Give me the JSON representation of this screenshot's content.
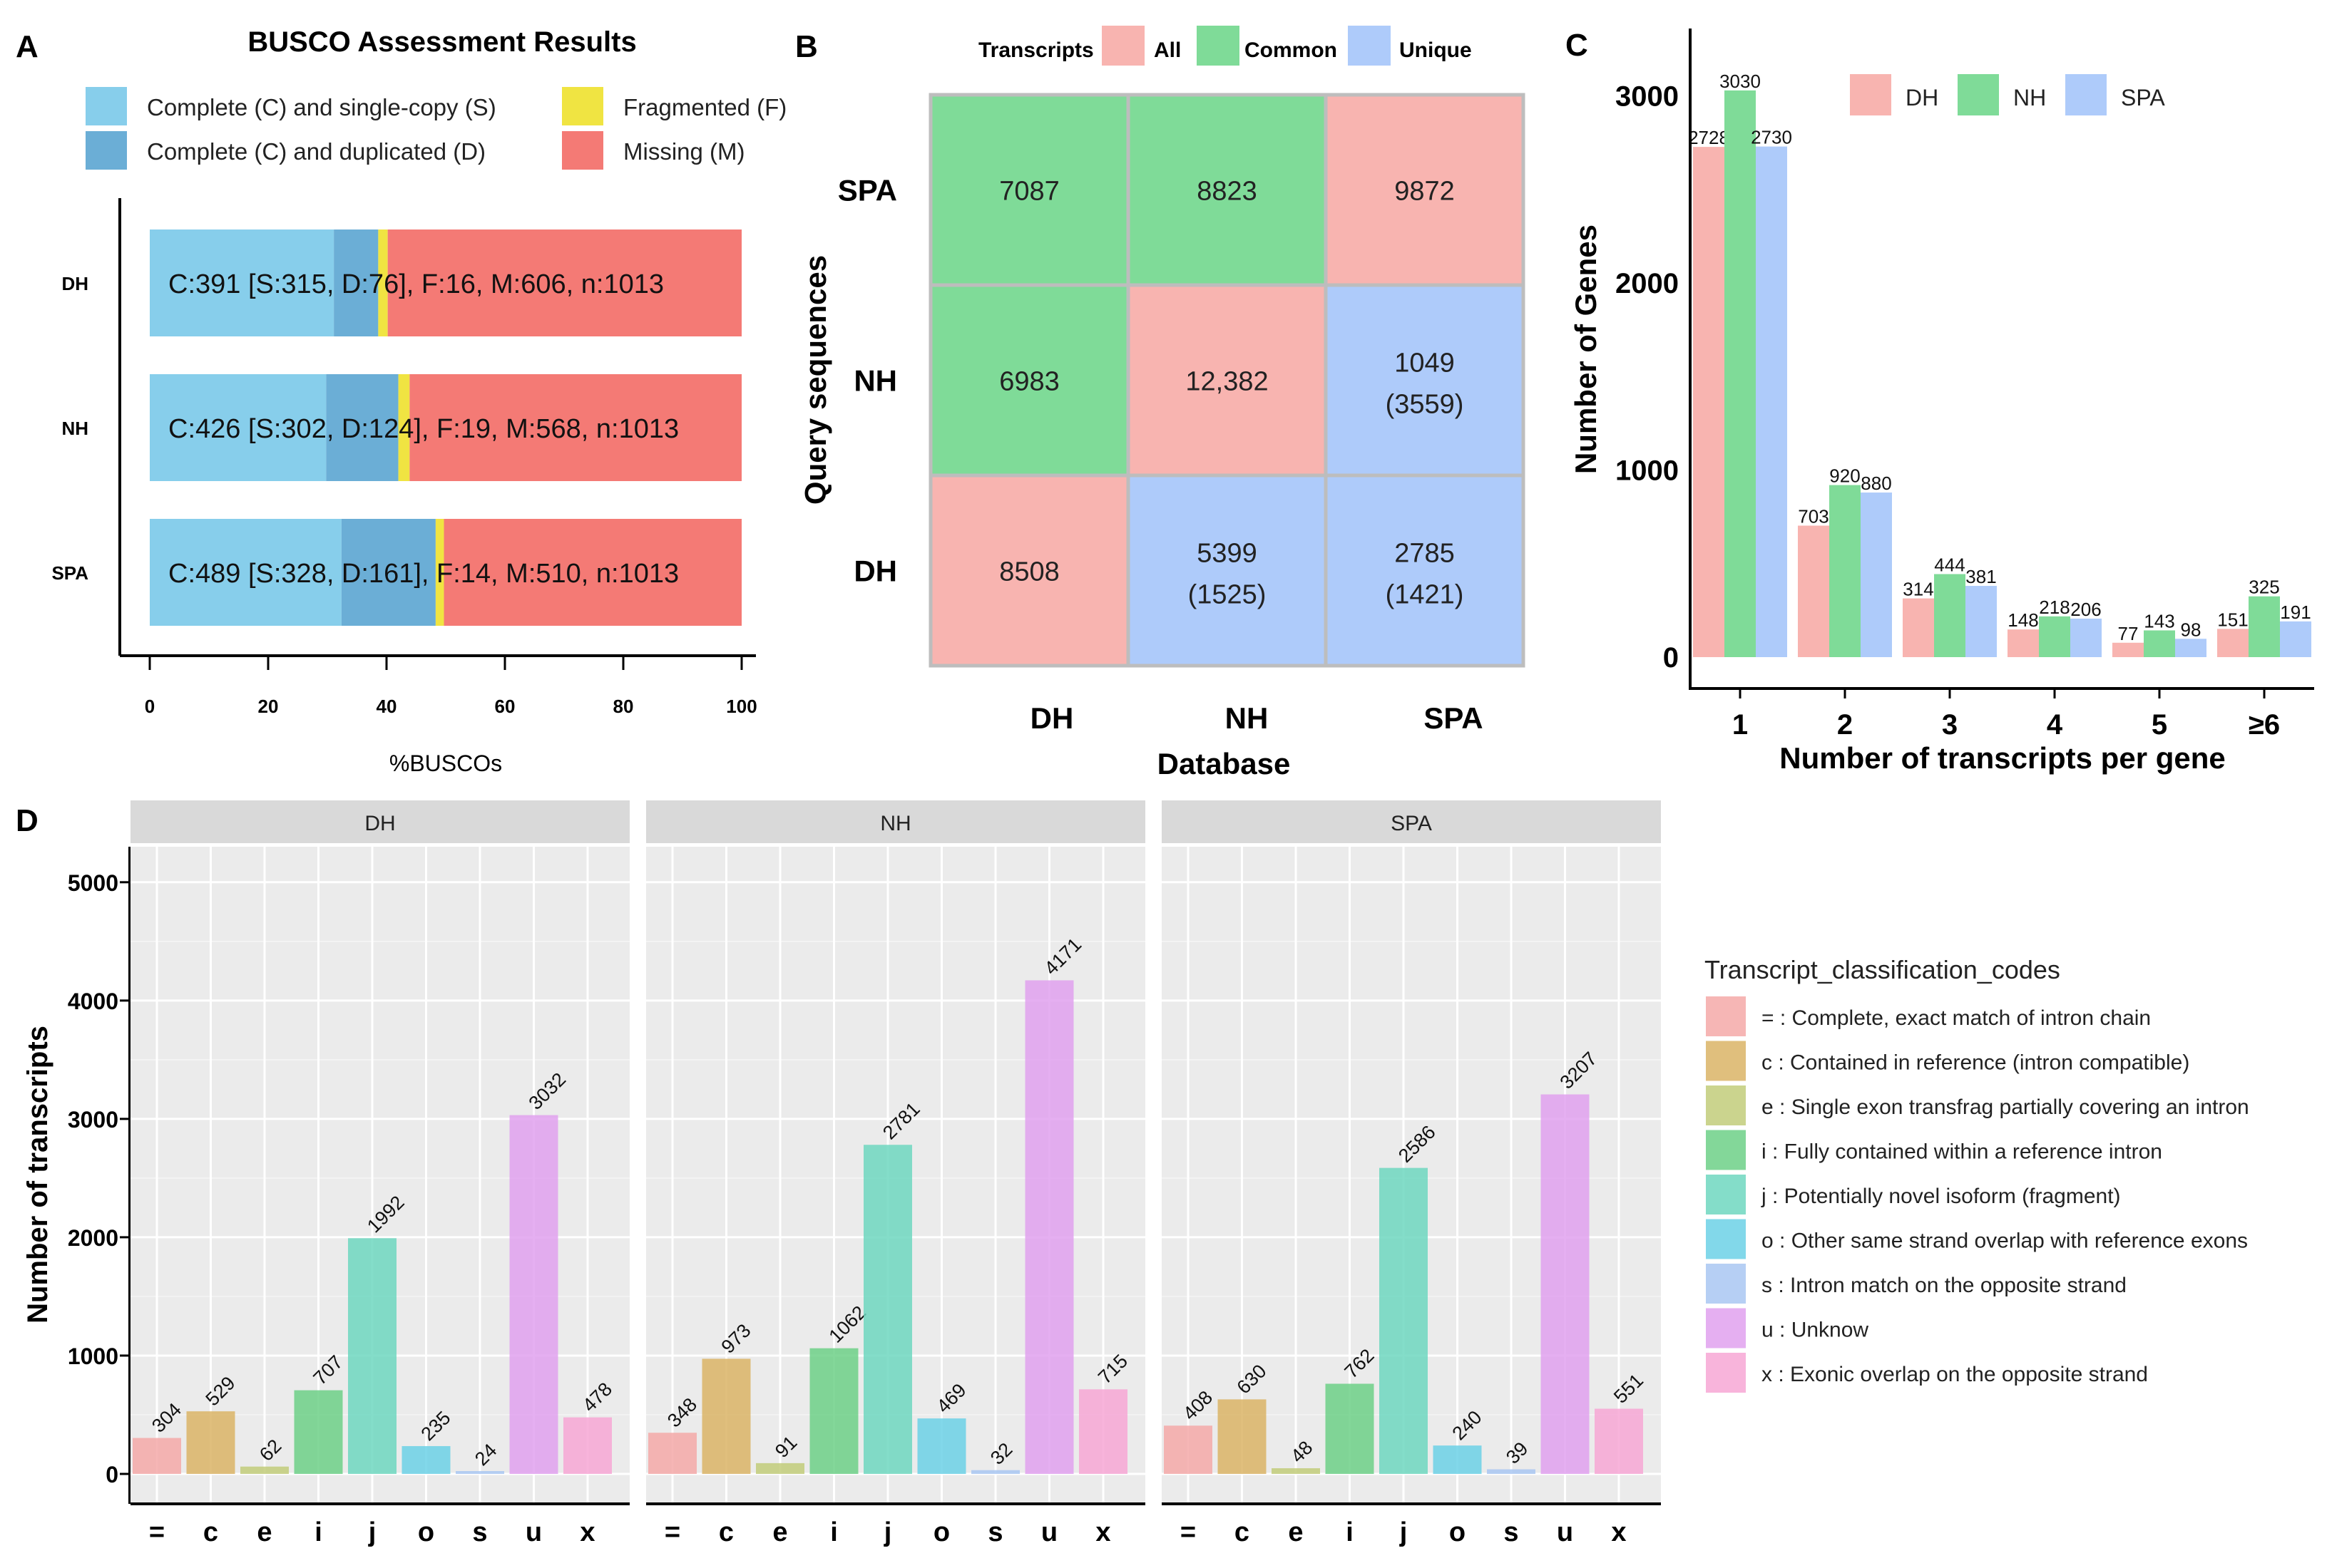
{
  "chart_data": [
    {
      "panel": "A",
      "type": "bar",
      "orientation": "horizontal-stacked",
      "title": "BUSCO Assessment Results",
      "xlabel": "%BUSCOs",
      "ylabel": "",
      "xlim": [
        0,
        100
      ],
      "xticks": [
        "0",
        "20",
        "40",
        "60",
        "80",
        "100"
      ],
      "categories": [
        "DH",
        "NH",
        "SPA"
      ],
      "series": [
        {
          "name": "Complete (C) and single-copy (S)",
          "color": "#87ceeb",
          "values": [
            31.1,
            29.8,
            32.4
          ]
        },
        {
          "name": "Complete (C) and duplicated (D)",
          "color": "#6baed6",
          "values": [
            7.5,
            12.2,
            15.9
          ]
        },
        {
          "name": "Fragmented (F)",
          "color": "#f0e442",
          "values": [
            1.6,
            1.9,
            1.4
          ]
        },
        {
          "name": "Missing (M)",
          "color": "#f47a75",
          "values": [
            59.8,
            56.1,
            50.3
          ]
        }
      ],
      "bar_labels": [
        "C:391 [S:315, D:76], F:16, M:606, n:1013",
        "C:426 [S:302, D:124], F:19, M:568, n:1013",
        "C:489 [S:328, D:161], F:14, M:510, n:1013"
      ],
      "legend": [
        {
          "label": "Complete (C) and single-copy (S)",
          "color": "#87ceeb"
        },
        {
          "label": "Fragmented (F)",
          "color": "#f0e442"
        },
        {
          "label": "Complete (C) and duplicated (D)",
          "color": "#6baed6"
        },
        {
          "label": "Missing (M)",
          "color": "#f47a75"
        }
      ]
    },
    {
      "panel": "B",
      "type": "heatmap",
      "xlabel": "Database",
      "ylabel": "Query sequences",
      "x": [
        "DH",
        "NH",
        "SPA"
      ],
      "y": [
        "SPA",
        "NH",
        "DH"
      ],
      "legend_title": "Transcripts",
      "legend": [
        {
          "label": "All",
          "color": "#f8b4b0"
        },
        {
          "label": "Common",
          "color": "#7fdb98"
        },
        {
          "label": "Unique",
          "color": "#aecbfa"
        }
      ],
      "cells": [
        [
          {
            "line1": "7087",
            "line2": "",
            "cat": "Common"
          },
          {
            "line1": "8823",
            "line2": "",
            "cat": "Common"
          },
          {
            "line1": "9872",
            "line2": "",
            "cat": "All"
          }
        ],
        [
          {
            "line1": "6983",
            "line2": "",
            "cat": "Common"
          },
          {
            "line1": "12,382",
            "line2": "",
            "cat": "All"
          },
          {
            "line1": "1049",
            "line2": "(3559)",
            "cat": "Unique"
          }
        ],
        [
          {
            "line1": "8508",
            "line2": "",
            "cat": "All"
          },
          {
            "line1": "5399",
            "line2": "(1525)",
            "cat": "Unique"
          },
          {
            "line1": "2785",
            "line2": "(1421)",
            "cat": "Unique"
          }
        ]
      ]
    },
    {
      "panel": "C",
      "type": "bar",
      "xlabel": "Number of transcripts per gene",
      "ylabel": "Number of Genes",
      "ylim": [
        0,
        3300
      ],
      "yticks": [
        0,
        1000,
        2000,
        3000
      ],
      "categories": [
        "1",
        "2",
        "3",
        "4",
        "5",
        "≥6"
      ],
      "series": [
        {
          "name": "DH",
          "color": "#f8b4b0",
          "values": [
            2728,
            703,
            314,
            148,
            77,
            151
          ]
        },
        {
          "name": "NH",
          "color": "#7fdb98",
          "values": [
            3030,
            920,
            444,
            218,
            143,
            325
          ]
        },
        {
          "name": "SPA",
          "color": "#aecbfa",
          "values": [
            2730,
            880,
            381,
            206,
            98,
            191
          ]
        }
      ]
    },
    {
      "panel": "D",
      "type": "bar",
      "facets": [
        "DH",
        "NH",
        "SPA"
      ],
      "xlabel": "",
      "ylabel": "Number of transcripts",
      "ylim": [
        0,
        5300
      ],
      "yticks": [
        0,
        1000,
        2000,
        3000,
        4000,
        5000
      ],
      "categories": [
        "=",
        "c",
        "e",
        "i",
        "j",
        "o",
        "s",
        "u",
        "x"
      ],
      "colors": [
        "#f4a9a8",
        "#dbb466",
        "#c2cc7a",
        "#6dd087",
        "#6fd7c0",
        "#6cd1e6",
        "#a9c7f2",
        "#e0a1ee",
        "#f7a7d5"
      ],
      "values": [
        [
          304,
          529,
          62,
          707,
          1992,
          235,
          24,
          3032,
          478
        ],
        [
          348,
          973,
          91,
          1062,
          2781,
          469,
          32,
          4171,
          715
        ],
        [
          408,
          630,
          48,
          762,
          2586,
          240,
          39,
          3207,
          551
        ]
      ],
      "value_labels": [
        [
          "304",
          "529",
          "62",
          "707",
          "1992",
          "235",
          "24",
          "3032",
          "478"
        ],
        [
          "348",
          "973",
          "91",
          "1062",
          "2781",
          "469",
          "32",
          "4171",
          "715"
        ],
        [
          "408",
          "630",
          "48",
          "762",
          "2586",
          "240",
          "39",
          "3207",
          "551"
        ]
      ],
      "legend_title": "Transcript_classification_codes",
      "legend": [
        "= :  Complete, exact match of intron chain",
        "c :  Contained in reference (intron compatible)",
        "e :  Single exon transfrag partially covering an intron",
        "i :  Fully contained within a reference intron",
        "j :  Potentially novel isoform (fragment)",
        "o :  Other same strand overlap with reference exons",
        "s :  Intron match on the opposite strand",
        "u :  Unknow",
        "x :  Exonic overlap on the opposite strand"
      ]
    }
  ],
  "panel_labels": [
    "A",
    "B",
    "C",
    "D"
  ]
}
